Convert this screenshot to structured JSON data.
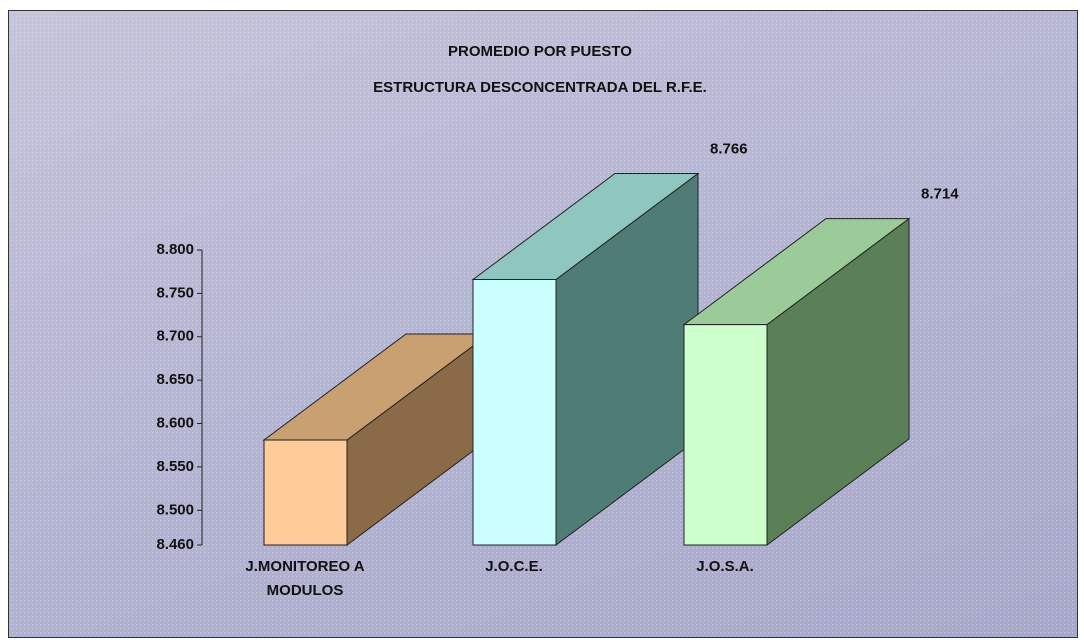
{
  "chart_data": {
    "type": "bar3d",
    "title": "PROMEDIO POR PUESTO",
    "subtitle": "ESTRUCTURA DESCONCENTRADA DEL R.F.E.",
    "categories": [
      "J.MONITOREO A MODULOS",
      "J.O.C.E.",
      "J.O.S.A."
    ],
    "values": [
      8.581,
      8.766,
      8.714
    ],
    "colors": [
      "#ffcc99",
      "#ccffff",
      "#ccffcc"
    ],
    "top_colors": [
      "#c9a072",
      "#8fc6bf",
      "#9acb98"
    ],
    "side_colors": [
      "#8a6a47",
      "#4f7c75",
      "#5b8057"
    ],
    "ylim": [
      8.46,
      8.8
    ],
    "yticks": [
      {
        "value": 8.46,
        "label": "8.460"
      },
      {
        "value": 8.5,
        "label": "8.500"
      },
      {
        "value": 8.55,
        "label": "8.550"
      },
      {
        "value": 8.6,
        "label": "8.600"
      },
      {
        "value": 8.65,
        "label": "8.650"
      },
      {
        "value": 8.7,
        "label": "8.700"
      },
      {
        "value": 8.75,
        "label": "8.750"
      },
      {
        "value": 8.8,
        "label": "8.800"
      }
    ]
  }
}
